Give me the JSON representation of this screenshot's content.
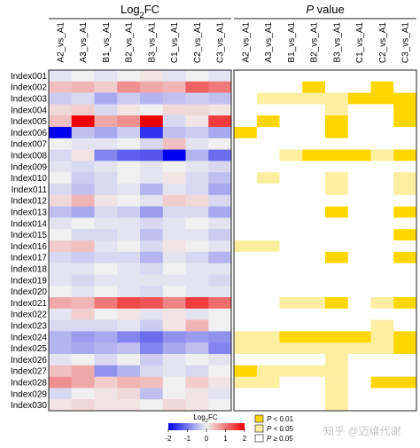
{
  "chart_data": [
    {
      "type": "heatmap",
      "title": "Log2FC",
      "columns": [
        "A2_vs_A1",
        "A3_vs_A1",
        "B1_vs_A1",
        "B2_vs_A1",
        "B3_vs_A1",
        "C1_vs_A1",
        "C2_vs_A1",
        "C3_vs_A1"
      ],
      "rows": [
        "Index001",
        "Index002",
        "Index003",
        "Index004",
        "Index005",
        "Index006",
        "Index007",
        "Index008",
        "Index009",
        "Index010",
        "Index011",
        "Index012",
        "Index013",
        "Index014",
        "Index015",
        "Index016",
        "Index017",
        "Index018",
        "Index019",
        "Index020",
        "Index021",
        "Index022",
        "Index023",
        "Index024",
        "Index025",
        "Index026",
        "Index027",
        "Index028",
        "Index029",
        "Index030"
      ],
      "values": [
        [
          -0.1,
          0.0,
          -0.1,
          0.0,
          0.1,
          -0.1,
          0.0,
          -0.1
        ],
        [
          0.4,
          0.5,
          0.3,
          0.8,
          0.6,
          0.5,
          1.2,
          1.0
        ],
        [
          -0.3,
          -0.2,
          -0.6,
          -0.3,
          -0.5,
          -0.4,
          -0.3,
          -0.4
        ],
        [
          0.2,
          0.3,
          -0.2,
          0.1,
          0.0,
          0.2,
          0.2,
          0.1
        ],
        [
          0.4,
          2.0,
          0.6,
          0.8,
          2.0,
          -0.2,
          0.1,
          1.5
        ],
        [
          -2.0,
          -0.4,
          -0.6,
          -0.3,
          -1.6,
          -0.4,
          -0.3,
          -0.6
        ],
        [
          0.0,
          -0.1,
          -0.1,
          0.0,
          -0.2,
          0.4,
          -0.1,
          0.0
        ],
        [
          -0.2,
          0.1,
          -0.9,
          -1.2,
          -1.3,
          -2.0,
          -0.5,
          -1.1
        ],
        [
          -0.1,
          -0.2,
          -0.1,
          0.0,
          -0.1,
          0.0,
          -0.1,
          -0.2
        ],
        [
          0.0,
          -0.3,
          -0.2,
          0.0,
          -0.1,
          0.1,
          -0.2,
          -0.4
        ],
        [
          -0.2,
          -0.4,
          -0.2,
          -0.1,
          -0.5,
          -0.1,
          -0.2,
          -0.6
        ],
        [
          0.2,
          0.5,
          0.1,
          0.0,
          -0.1,
          0.3,
          0.2,
          -0.2
        ],
        [
          -0.4,
          -0.6,
          -0.2,
          -0.3,
          -0.7,
          -0.2,
          -0.2,
          -0.6
        ],
        [
          -0.1,
          0.0,
          -0.1,
          -0.1,
          -0.2,
          -0.1,
          0.0,
          -0.1
        ],
        [
          0.0,
          -0.2,
          -0.2,
          -0.1,
          -0.4,
          -0.1,
          -0.1,
          -0.3
        ],
        [
          0.3,
          0.4,
          -0.1,
          0.0,
          -0.2,
          0.1,
          0.0,
          -0.1
        ],
        [
          -0.2,
          -0.3,
          -0.2,
          -0.2,
          -0.5,
          -0.1,
          -0.2,
          -0.5
        ],
        [
          -0.1,
          -0.1,
          0.0,
          -0.1,
          -0.2,
          0.0,
          -0.1,
          -0.1
        ],
        [
          -0.1,
          -0.2,
          -0.1,
          -0.1,
          -0.1,
          -0.1,
          -0.1,
          -0.2
        ],
        [
          0.0,
          -0.1,
          0.0,
          -0.1,
          -0.2,
          0.0,
          -0.1,
          -0.1
        ],
        [
          0.6,
          0.5,
          1.0,
          1.4,
          1.3,
          0.9,
          1.5,
          1.1
        ],
        [
          -0.1,
          0.3,
          0.0,
          0.1,
          -0.1,
          0.1,
          -0.1,
          0.0
        ],
        [
          -0.2,
          -0.2,
          -0.2,
          -0.1,
          -0.3,
          0.1,
          0.5,
          0.0
        ],
        [
          -0.5,
          -0.7,
          -0.6,
          -0.9,
          -1.1,
          -0.8,
          -0.7,
          -0.8
        ],
        [
          -0.5,
          -0.6,
          -0.5,
          -0.4,
          -0.9,
          -0.6,
          -0.4,
          -0.9
        ],
        [
          -0.1,
          0.0,
          -0.2,
          0.0,
          -0.3,
          -0.1,
          0.0,
          -0.1
        ],
        [
          0.4,
          0.6,
          -0.8,
          -0.5,
          -0.2,
          -0.1,
          -0.2,
          0.0
        ],
        [
          0.8,
          0.6,
          0.3,
          0.5,
          0.4,
          0.0,
          0.3,
          0.1
        ],
        [
          -0.2,
          0.0,
          0.1,
          0.2,
          -0.4,
          0.0,
          0.1,
          -0.1
        ],
        [
          0.1,
          0.2,
          0.1,
          0.1,
          0.0,
          0.2,
          0.1,
          0.0
        ]
      ],
      "color_scale": {
        "min": -2,
        "max": 2,
        "low": "#0000ee",
        "mid": "#f0f0f0",
        "high": "#ee0000"
      },
      "legend": {
        "title": "Log2FC",
        "ticks": [
          "-2",
          "-1",
          "0",
          "1",
          "2"
        ]
      }
    },
    {
      "type": "heatmap",
      "title": "P value",
      "columns": [
        "A2_vs_A1",
        "A3_vs_A1",
        "B1_vs_A1",
        "B2_vs_A1",
        "B3_vs_A1",
        "C1_vs_A1",
        "C2_vs_A1",
        "C3_vs_A1"
      ],
      "rows": [
        "Index001",
        "Index002",
        "Index003",
        "Index004",
        "Index005",
        "Index006",
        "Index007",
        "Index008",
        "Index009",
        "Index010",
        "Index011",
        "Index012",
        "Index013",
        "Index014",
        "Index015",
        "Index016",
        "Index017",
        "Index018",
        "Index019",
        "Index020",
        "Index021",
        "Index022",
        "Index023",
        "Index024",
        "Index025",
        "Index026",
        "Index027",
        "Index028",
        "Index029",
        "Index030"
      ],
      "categories": [
        "P < 0.01",
        "P < 0.05",
        "P ≥ 0.05"
      ],
      "levels": [
        [
          0,
          0,
          0,
          0,
          0,
          0,
          0,
          0
        ],
        [
          0,
          0,
          0,
          2,
          0,
          0,
          2,
          0
        ],
        [
          0,
          1,
          1,
          1,
          1,
          2,
          2,
          2
        ],
        [
          0,
          0,
          0,
          0,
          1,
          0,
          0,
          2
        ],
        [
          0,
          2,
          0,
          0,
          2,
          0,
          0,
          2
        ],
        [
          2,
          0,
          0,
          0,
          2,
          0,
          0,
          0
        ],
        [
          0,
          0,
          0,
          0,
          0,
          0,
          0,
          0
        ],
        [
          0,
          0,
          1,
          2,
          2,
          2,
          1,
          2
        ],
        [
          0,
          0,
          0,
          0,
          0,
          0,
          0,
          0
        ],
        [
          0,
          1,
          0,
          0,
          1,
          0,
          0,
          1
        ],
        [
          0,
          0,
          0,
          0,
          1,
          0,
          0,
          1
        ],
        [
          0,
          0,
          0,
          0,
          0,
          0,
          0,
          0
        ],
        [
          0,
          0,
          0,
          0,
          2,
          0,
          0,
          2
        ],
        [
          0,
          0,
          0,
          0,
          0,
          0,
          0,
          0
        ],
        [
          0,
          0,
          0,
          0,
          0,
          0,
          0,
          2
        ],
        [
          1,
          1,
          0,
          0,
          0,
          0,
          0,
          0
        ],
        [
          0,
          0,
          0,
          0,
          2,
          0,
          0,
          2
        ],
        [
          0,
          0,
          0,
          0,
          0,
          0,
          0,
          0
        ],
        [
          0,
          0,
          0,
          0,
          0,
          0,
          0,
          0
        ],
        [
          0,
          0,
          0,
          0,
          0,
          0,
          0,
          0
        ],
        [
          0,
          0,
          1,
          1,
          2,
          0,
          1,
          2
        ],
        [
          0,
          0,
          0,
          0,
          0,
          0,
          0,
          0
        ],
        [
          0,
          0,
          0,
          0,
          0,
          0,
          1,
          0
        ],
        [
          1,
          1,
          2,
          2,
          2,
          2,
          1,
          2
        ],
        [
          1,
          1,
          1,
          1,
          1,
          1,
          1,
          2
        ],
        [
          0,
          0,
          0,
          0,
          1,
          0,
          0,
          0
        ],
        [
          2,
          1,
          1,
          1,
          1,
          0,
          0,
          0
        ],
        [
          1,
          1,
          0,
          0,
          1,
          0,
          2,
          2
        ],
        [
          0,
          0,
          0,
          0,
          1,
          0,
          0,
          0
        ],
        [
          0,
          0,
          0,
          0,
          1,
          0,
          0,
          0
        ]
      ],
      "level_colors": [
        "#ffffff",
        "#fdeea0",
        "#fdd600"
      ],
      "legend": {
        "entries": [
          "P < 0.01",
          "P < 0.05",
          "P ≥ 0.05"
        ],
        "colors": [
          "#fdd600",
          "#fdeea0",
          "#ffffff"
        ]
      }
    }
  ],
  "watermark": "知乎 @迈维代谢"
}
